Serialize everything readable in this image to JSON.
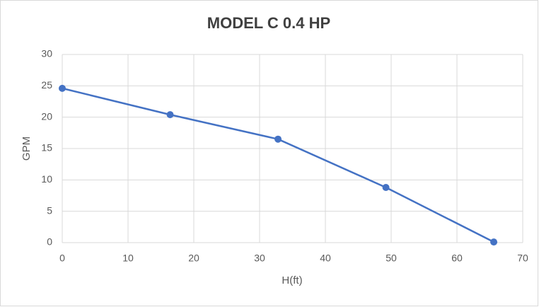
{
  "chart_data": {
    "type": "line",
    "title": "MODEL C 0.4 HP",
    "x_label": "H(ft)",
    "y_label": "GPM",
    "x": [
      0,
      16.4,
      32.8,
      49.2,
      65.6
    ],
    "series": [
      {
        "name": "GPM",
        "color": "#4472c4",
        "values": [
          24.6,
          20.4,
          16.5,
          8.8,
          0.1
        ]
      }
    ],
    "xlim": [
      0,
      70
    ],
    "xticks": [
      0,
      10,
      20,
      30,
      40,
      50,
      60,
      70
    ],
    "ylim": [
      0,
      30
    ],
    "yticks": [
      0,
      5,
      10,
      15,
      20,
      25,
      30
    ],
    "grid": true,
    "markers": true
  }
}
